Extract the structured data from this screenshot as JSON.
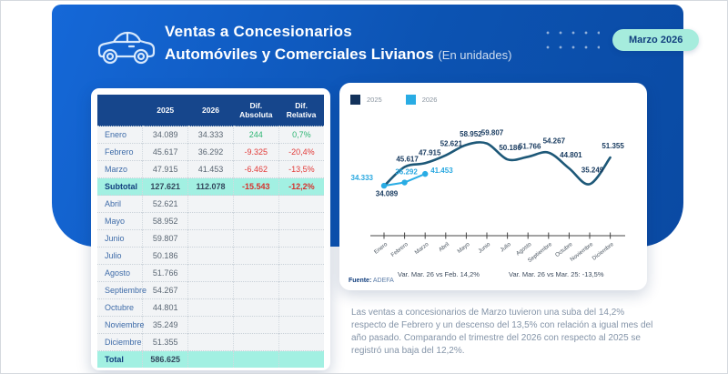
{
  "header": {
    "title_line1": "Ventas a Concesionarios",
    "title_line2": "Automóviles y Comerciales Livianos",
    "title_suffix": "(En unidades)",
    "badge": "Marzo 2026"
  },
  "table": {
    "columns": [
      "",
      "2025",
      "2026",
      "Dif. Absoluta",
      "Dif. Relativa"
    ],
    "rows": [
      {
        "label": "Enero",
        "y2025": "34.089",
        "y2026": "34.333",
        "dif_abs": "244",
        "dif_rel": "0,7%",
        "trend": "pos",
        "type": "data"
      },
      {
        "label": "Febrero",
        "y2025": "45.617",
        "y2026": "36.292",
        "dif_abs": "-9.325",
        "dif_rel": "-20,4%",
        "trend": "neg",
        "type": "data"
      },
      {
        "label": "Marzo",
        "y2025": "47.915",
        "y2026": "41.453",
        "dif_abs": "-6.462",
        "dif_rel": "-13,5%",
        "trend": "neg",
        "type": "data"
      },
      {
        "label": "Subtotal",
        "y2025": "127.621",
        "y2026": "112.078",
        "dif_abs": "-15.543",
        "dif_rel": "-12,2%",
        "trend": "neg",
        "type": "subtotal"
      },
      {
        "label": "Abril",
        "y2025": "52.621",
        "y2026": "",
        "dif_abs": "",
        "dif_rel": "",
        "trend": "",
        "type": "data"
      },
      {
        "label": "Mayo",
        "y2025": "58.952",
        "y2026": "",
        "dif_abs": "",
        "dif_rel": "",
        "trend": "",
        "type": "data"
      },
      {
        "label": "Junio",
        "y2025": "59.807",
        "y2026": "",
        "dif_abs": "",
        "dif_rel": "",
        "trend": "",
        "type": "data"
      },
      {
        "label": "Julio",
        "y2025": "50.186",
        "y2026": "",
        "dif_abs": "",
        "dif_rel": "",
        "trend": "",
        "type": "data"
      },
      {
        "label": "Agosto",
        "y2025": "51.766",
        "y2026": "",
        "dif_abs": "",
        "dif_rel": "",
        "trend": "",
        "type": "data"
      },
      {
        "label": "Septiembre",
        "y2025": "54.267",
        "y2026": "",
        "dif_abs": "",
        "dif_rel": "",
        "trend": "",
        "type": "data"
      },
      {
        "label": "Octubre",
        "y2025": "44.801",
        "y2026": "",
        "dif_abs": "",
        "dif_rel": "",
        "trend": "",
        "type": "data"
      },
      {
        "label": "Noviembre",
        "y2025": "35.249",
        "y2026": "",
        "dif_abs": "",
        "dif_rel": "",
        "trend": "",
        "type": "data"
      },
      {
        "label": "Diciembre",
        "y2025": "51.355",
        "y2026": "",
        "dif_abs": "",
        "dif_rel": "",
        "trend": "",
        "type": "data"
      },
      {
        "label": "Total",
        "y2025": "586.625",
        "y2026": "",
        "dif_abs": "",
        "dif_rel": "",
        "trend": "",
        "type": "total"
      }
    ]
  },
  "chart_data": {
    "type": "line",
    "title": "",
    "x": [
      "Enero",
      "Febrero",
      "Marzo",
      "Abril",
      "Mayo",
      "Junio",
      "Julio",
      "Agosto",
      "Septiembre",
      "Octubre",
      "Noviembre",
      "Diciembre"
    ],
    "series": [
      {
        "name": "2025",
        "swatch": "#12325b",
        "color": "#1d5878",
        "label_color": "#16395e",
        "smooth": true,
        "markers": false,
        "values": [
          34089,
          45617,
          47915,
          52621,
          58952,
          59807,
          50186,
          51766,
          54267,
          44801,
          35249,
          51355
        ],
        "labels": [
          "34.089",
          "45.617",
          "47.915",
          "52.621",
          "58.952",
          "59.807",
          "50.186",
          "51.766",
          "54.267",
          "44.801",
          "35.249",
          "51.355"
        ]
      },
      {
        "name": "2026",
        "swatch": "#29ace4",
        "color": "#29ace4",
        "label_color": "#29a8e0",
        "smooth": false,
        "markers": true,
        "values": [
          34333,
          36292,
          41453
        ],
        "labels": [
          "34.333",
          "36.292",
          "41.453"
        ]
      }
    ],
    "ylim": [
      30000,
      64000
    ],
    "grid": false,
    "legend_position": "top-left",
    "label_layout": {
      "offsets_2025": [
        [
          3,
          11
        ],
        [
          3,
          -6
        ],
        [
          5,
          -9
        ],
        [
          6,
          -10
        ],
        [
          5,
          -9
        ],
        [
          6,
          -9
        ],
        [
          3,
          -10
        ],
        [
          2,
          -9
        ],
        [
          6,
          -10
        ],
        [
          2,
          -12
        ],
        [
          3,
          -13
        ],
        [
          3,
          -10
        ]
      ],
      "offsets_2026": [
        [
          -12,
          -6
        ],
        [
          2,
          -9
        ],
        [
          6,
          -1
        ]
      ],
      "anchors_2026": [
        "end",
        "middle",
        "start"
      ]
    }
  },
  "chart_notes": {
    "var_feb": "Var. Mar. 26 vs Feb. 14,2%",
    "var_year": "Var. Mar. 26 vs Mar. 25: -13,5%",
    "fuente_label": "Fuente:",
    "fuente_value": "ADEFA"
  },
  "summary": {
    "text": "Las ventas a concesionarios de Marzo tuvieron una suba del 14,2% respecto de Febrero y un descenso del 13,5% con relación a igual mes del año pasado. Comparando el trimestre del 2026 con respecto al 2025 se registró una baja del 12,2%."
  },
  "colors": {
    "header_blue_light": "#1568d8",
    "header_blue_dark": "#0a4aa3",
    "table_header": "#16468c",
    "highlight_mint": "#a2f0e2",
    "badge_mint": "#a6ecdd",
    "navy_text": "#123f7e",
    "positive": "#2db573",
    "negative": "#e23a38",
    "line_2025": "#1d5878",
    "line_2026": "#29ace4"
  }
}
